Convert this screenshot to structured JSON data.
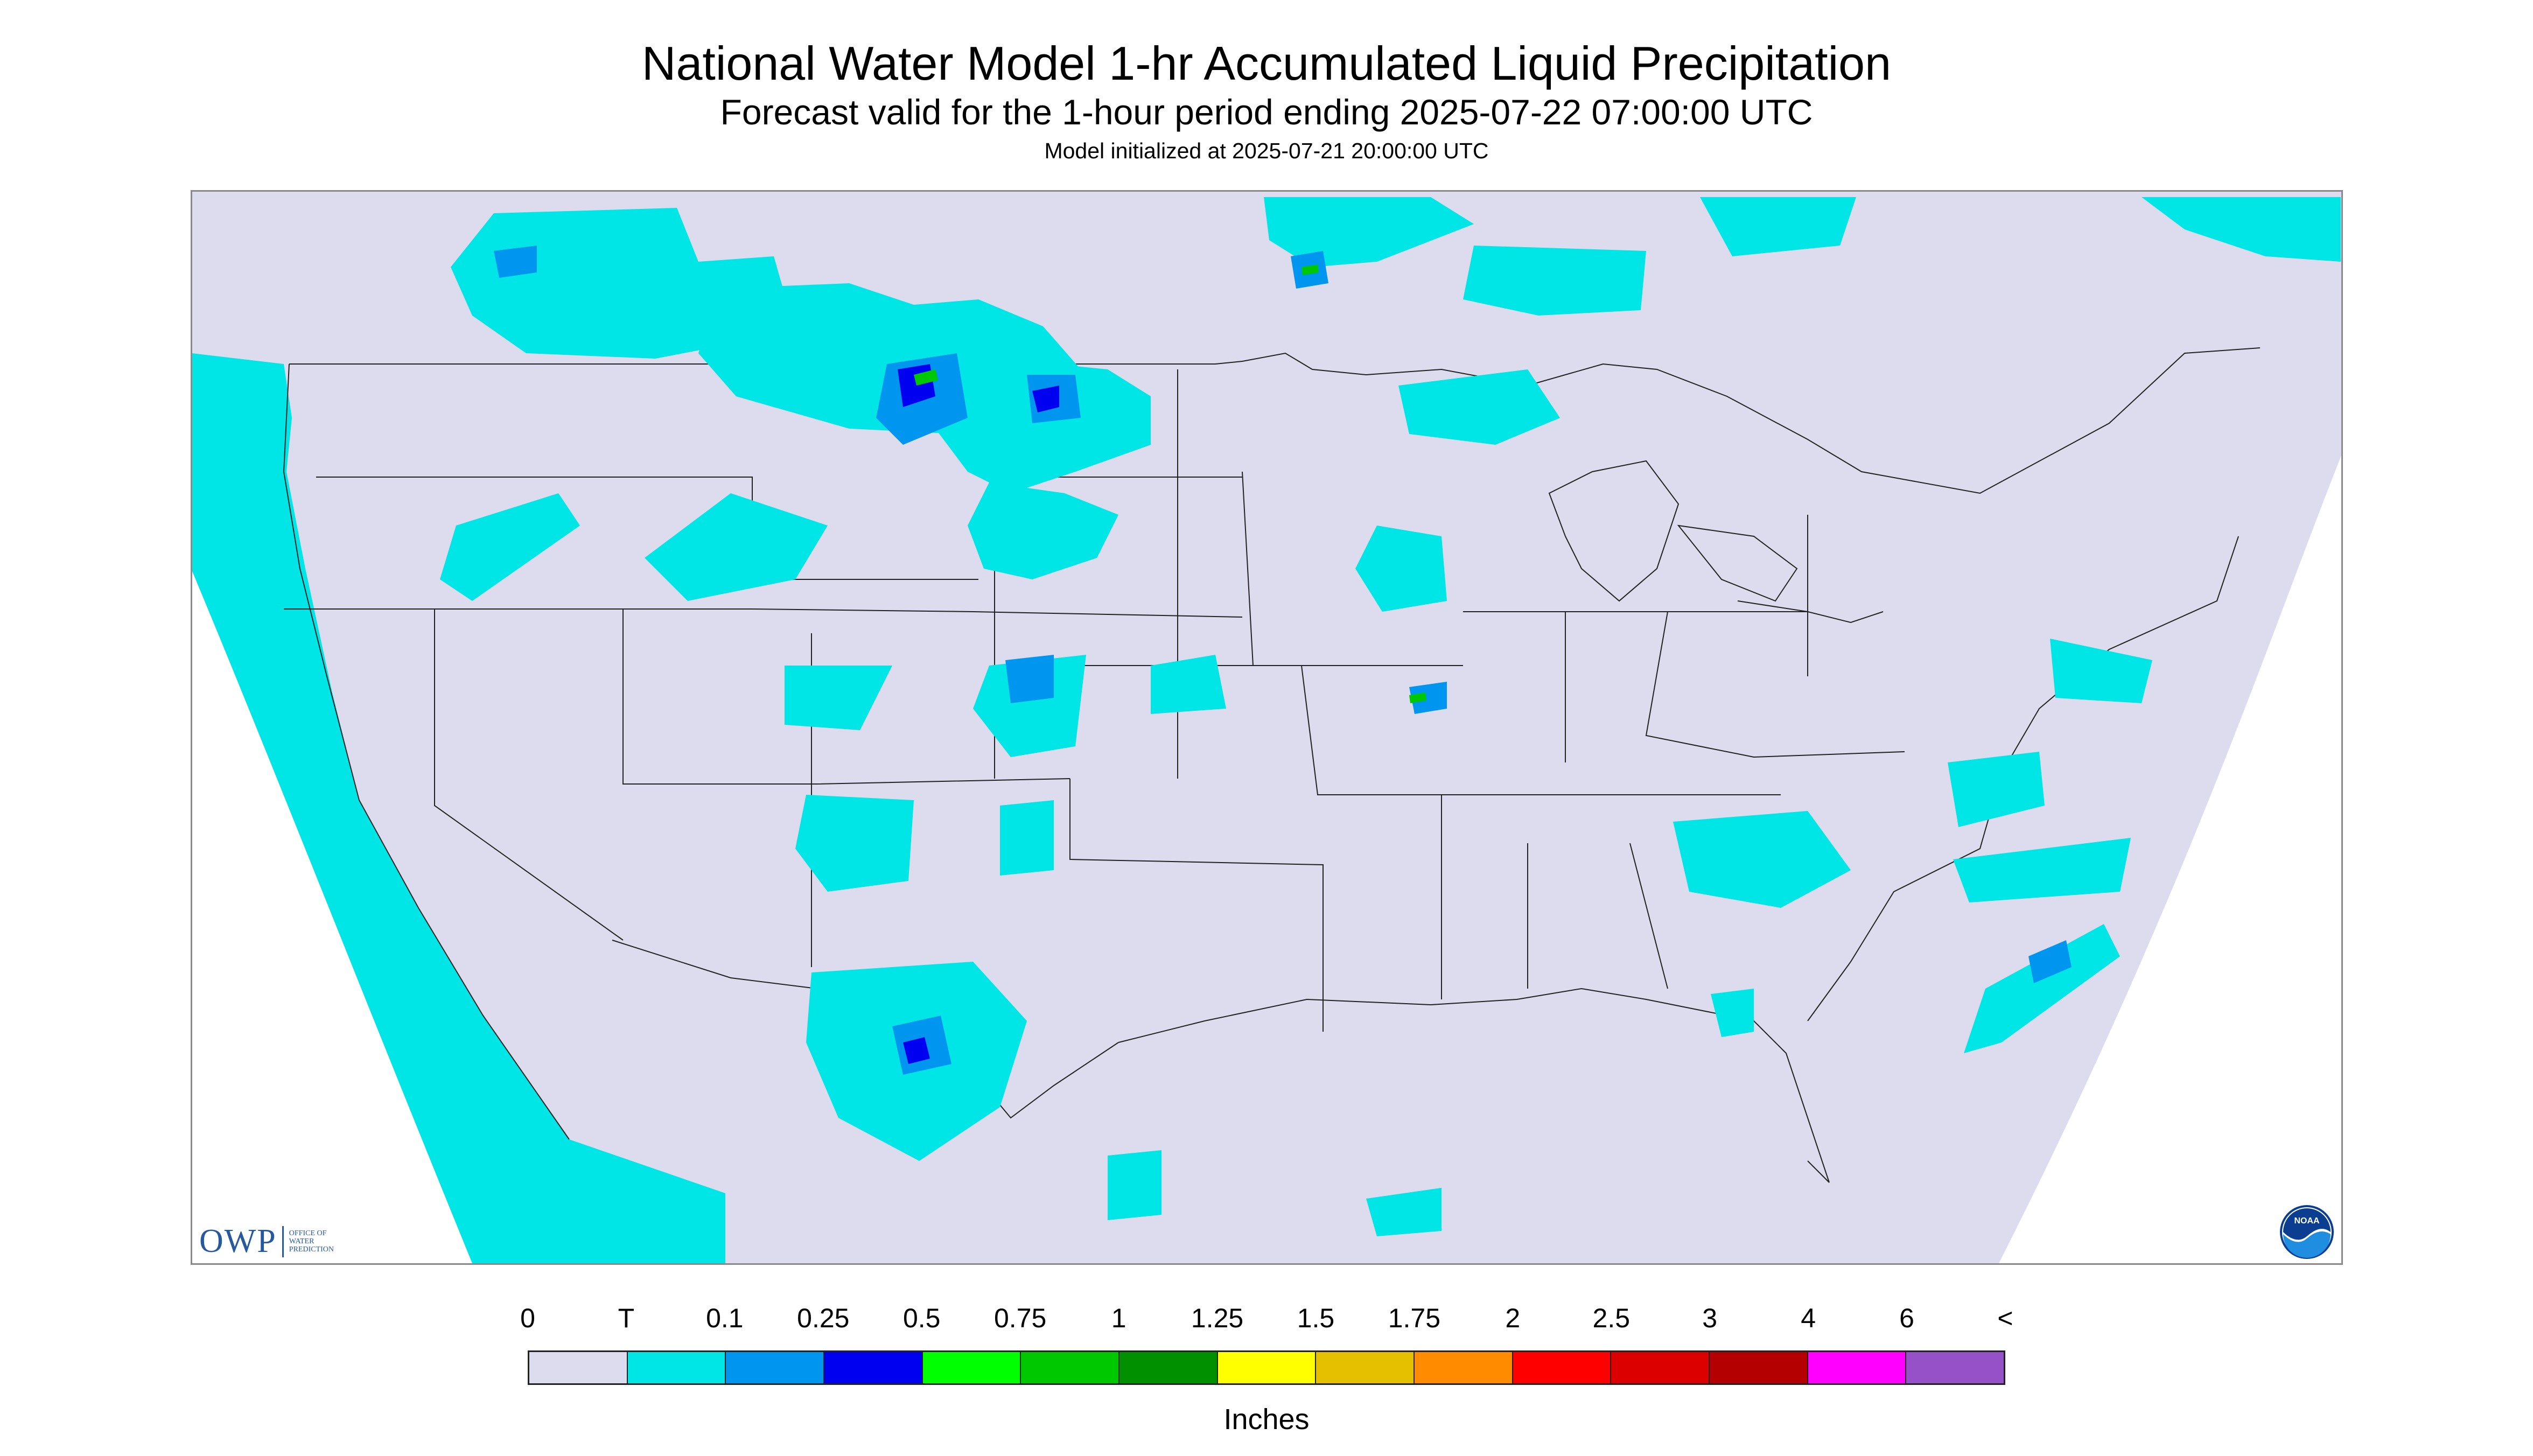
{
  "header": {
    "title": "National Water Model 1-hr Accumulated Liquid Precipitation",
    "subtitle": "Forecast valid for the 1-hour period ending 2025-07-22 07:00:00 UTC",
    "init": "Model initialized at 2025-07-21 20:00:00 UTC"
  },
  "logos": {
    "owp_mark": "OWP",
    "owp_text": [
      "OFFICE OF",
      "WATER",
      "PREDICTION"
    ],
    "noaa_text": "NOAA"
  },
  "legend": {
    "ticks": [
      "0",
      "T",
      "0.1",
      "0.25",
      "0.5",
      "0.75",
      "1",
      "1.25",
      "1.5",
      "1.75",
      "2",
      "2.5",
      "3",
      "4",
      "6",
      "<"
    ],
    "colors": [
      "#dcdcee",
      "#00e5e5",
      "#0096f0",
      "#0000f0",
      "#00ff00",
      "#00c800",
      "#009000",
      "#ffff00",
      "#e5c000",
      "#ff8c00",
      "#ff0000",
      "#dc0000",
      "#b40000",
      "#ff00ff",
      "#9650c8"
    ],
    "units": "Inches"
  },
  "map": {
    "domain_bg": "#dcdcee",
    "outside_bg": "#ffffff",
    "boundary_color": "#222222"
  }
}
